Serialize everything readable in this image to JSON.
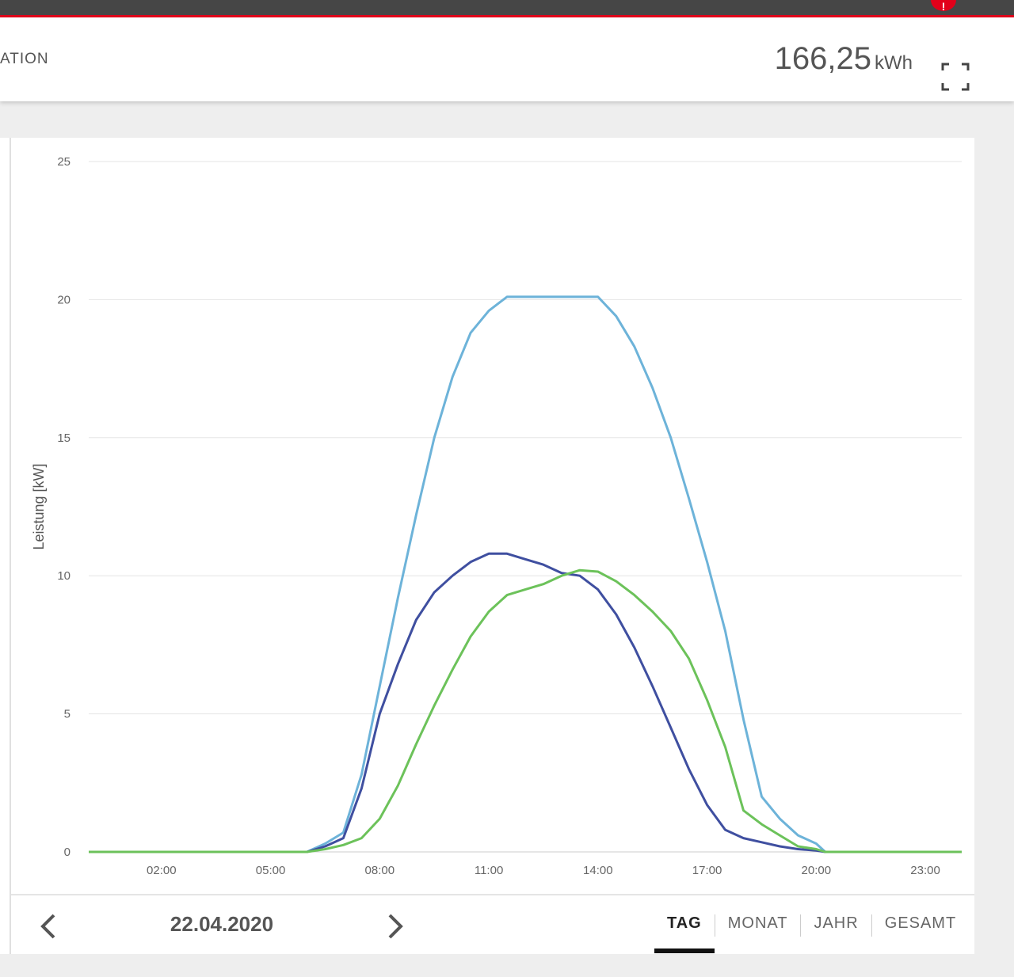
{
  "header": {
    "title": "ATION",
    "energy_value": "166,25",
    "energy_unit": "kWh",
    "notification_badge": "!"
  },
  "navigation": {
    "date": "22.04.2020",
    "prev_icon": "chevron-left-icon",
    "next_icon": "chevron-right-icon",
    "fullscreen_icon": "fullscreen-icon"
  },
  "tabs": [
    {
      "label": "TAG",
      "active": true
    },
    {
      "label": "MONAT",
      "active": false
    },
    {
      "label": "JAHR",
      "active": false
    },
    {
      "label": "GESAMT",
      "active": false
    }
  ],
  "colors": {
    "accent": "#e2001a",
    "topbar": "#464646",
    "series_light_blue": "#6db3d9",
    "series_dark_blue": "#3f4fa0",
    "series_green": "#6cc25a"
  },
  "chart_data": {
    "type": "line",
    "ylabel": "Leistung [kW]",
    "xlabel": "",
    "ylim": [
      0,
      25
    ],
    "yticks": [
      0,
      5,
      10,
      15,
      20,
      25
    ],
    "xlim": [
      0,
      24
    ],
    "xticks": [
      "02:00",
      "05:00",
      "08:00",
      "11:00",
      "14:00",
      "17:00",
      "20:00",
      "23:00"
    ],
    "xtick_values": [
      2,
      5,
      8,
      11,
      14,
      17,
      20,
      23
    ],
    "grid": true,
    "series": [
      {
        "color": "#6db3d9",
        "x": [
          0,
          6,
          6.5,
          7,
          7.5,
          8,
          8.5,
          9,
          9.5,
          10,
          10.5,
          11,
          11.5,
          12,
          12.5,
          13,
          13.5,
          14,
          14.5,
          15,
          15.5,
          16,
          16.5,
          17,
          17.5,
          18,
          18.5,
          19,
          19.5,
          20,
          20.25,
          24
        ],
        "y": [
          0,
          0,
          0.3,
          0.7,
          2.8,
          6,
          9.2,
          12.2,
          15,
          17.2,
          18.8,
          19.6,
          20.1,
          20.1,
          20.1,
          20.1,
          20.1,
          20.1,
          19.4,
          18.3,
          16.8,
          15,
          12.8,
          10.5,
          8,
          4.8,
          2,
          1.2,
          0.6,
          0.3,
          0,
          0
        ]
      },
      {
        "color": "#3f4fa0",
        "x": [
          0,
          6,
          6.5,
          7,
          7.5,
          8,
          8.5,
          9,
          9.5,
          10,
          10.5,
          11,
          11.5,
          12,
          12.5,
          13,
          13.5,
          14,
          14.5,
          15,
          15.5,
          16,
          16.5,
          17,
          17.5,
          18,
          18.5,
          19,
          19.5,
          20,
          20.25,
          24
        ],
        "y": [
          0,
          0,
          0.2,
          0.5,
          2.3,
          5,
          6.8,
          8.4,
          9.4,
          10,
          10.5,
          10.8,
          10.8,
          10.6,
          10.4,
          10.1,
          10,
          9.5,
          8.6,
          7.4,
          6,
          4.5,
          3,
          1.7,
          0.8,
          0.5,
          0.35,
          0.2,
          0.1,
          0.05,
          0,
          0
        ]
      },
      {
        "color": "#6cc25a",
        "x": [
          0,
          6,
          6.5,
          7,
          7.5,
          8,
          8.5,
          9,
          9.5,
          10,
          10.5,
          11,
          11.5,
          12,
          12.5,
          13,
          13.5,
          14,
          14.5,
          15,
          15.5,
          16,
          16.5,
          17,
          17.5,
          18,
          18.5,
          19,
          19.5,
          20,
          20.25,
          24
        ],
        "y": [
          0,
          0,
          0.1,
          0.25,
          0.5,
          1.2,
          2.4,
          3.9,
          5.3,
          6.6,
          7.8,
          8.7,
          9.3,
          9.5,
          9.7,
          10,
          10.2,
          10.15,
          9.8,
          9.3,
          8.7,
          8,
          7,
          5.5,
          3.8,
          1.5,
          1,
          0.6,
          0.2,
          0.1,
          0,
          0
        ]
      }
    ]
  }
}
